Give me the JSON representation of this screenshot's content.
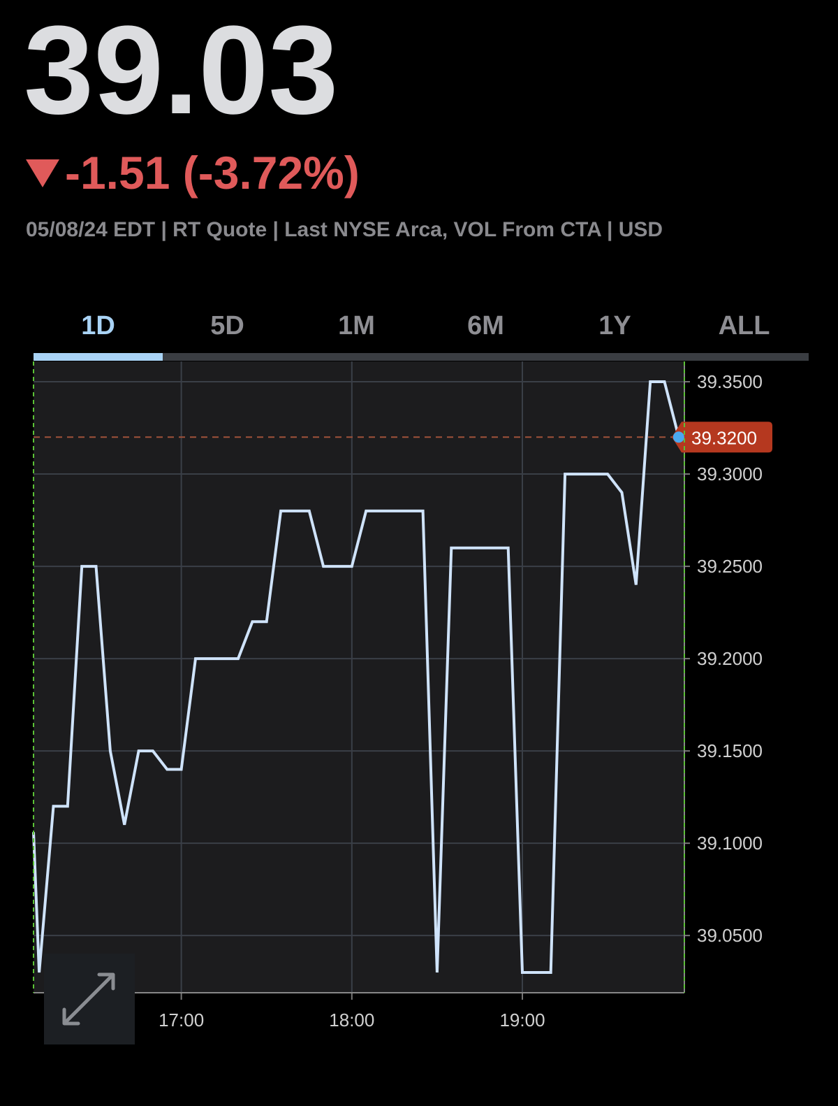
{
  "quote": {
    "price": "39.03",
    "change": "-1.51 (-3.72%)",
    "meta": "05/08/24 EDT | RT Quote | Last NYSE Arca, VOL From CTA | USD"
  },
  "tabs": [
    "1D",
    "5D",
    "1M",
    "6M",
    "1Y",
    "ALL"
  ],
  "active_tab": 0,
  "chart_data": {
    "type": "line",
    "x": [
      "16:08",
      "16:10",
      "16:15",
      "16:20",
      "16:25",
      "16:30",
      "16:35",
      "16:40",
      "16:45",
      "16:50",
      "16:55",
      "17:00",
      "17:05",
      "17:20",
      "17:25",
      "17:30",
      "17:35",
      "17:45",
      "17:50",
      "18:00",
      "18:05",
      "18:25",
      "18:30",
      "18:35",
      "18:55",
      "19:00",
      "19:10",
      "19:15",
      "19:30",
      "19:35",
      "19:40",
      "19:45",
      "19:50",
      "19:55"
    ],
    "series": [
      {
        "color": "#cfe3fb",
        "values": [
          39.106,
          39.03,
          39.12,
          39.12,
          39.25,
          39.25,
          39.15,
          39.11,
          39.15,
          39.15,
          39.14,
          39.14,
          39.2,
          39.2,
          39.22,
          39.22,
          39.28,
          39.28,
          39.25,
          39.25,
          39.28,
          39.28,
          39.03,
          39.26,
          39.26,
          39.03,
          39.03,
          39.3,
          39.3,
          39.29,
          39.24,
          39.35,
          39.35,
          39.32
        ]
      }
    ],
    "last_price": {
      "value": 39.32,
      "label": "39.3200"
    },
    "xlim": [
      "16:08",
      "19:57"
    ],
    "xticks": [
      "17:00",
      "18:00",
      "19:00"
    ],
    "ylim": [
      39.019,
      39.361
    ],
    "yticks": [
      {
        "value": 39.05,
        "label": "39.0500"
      },
      {
        "value": 39.1,
        "label": "39.1000"
      },
      {
        "value": 39.15,
        "label": "39.1500"
      },
      {
        "value": 39.2,
        "label": "39.2000"
      },
      {
        "value": 39.25,
        "label": "39.2500"
      },
      {
        "value": 39.3,
        "label": "39.3000"
      },
      {
        "value": 39.35,
        "label": "39.3500"
      }
    ],
    "grid": true
  }
}
